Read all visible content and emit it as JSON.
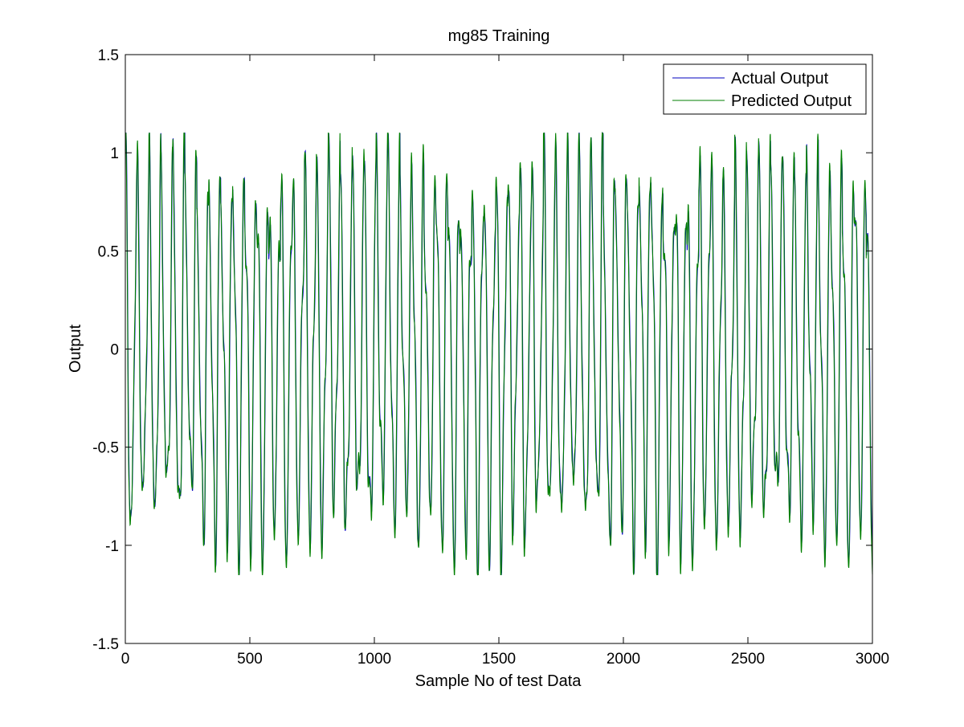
{
  "chart_data": {
    "type": "line",
    "title": "mg85 Training",
    "xlabel": "Sample No of test Data",
    "ylabel": "Output",
    "xlim": [
      0,
      3000
    ],
    "ylim": [
      -1.5,
      1.5
    ],
    "xticks": [
      0,
      500,
      1000,
      1500,
      2000,
      2500,
      3000
    ],
    "yticks": [
      -1.5,
      -1,
      -0.5,
      0,
      0.5,
      1,
      1.5
    ],
    "xtick_labels": [
      "0",
      "500",
      "1000",
      "1500",
      "2000",
      "2500",
      "3000"
    ],
    "ytick_labels": [
      "-1.5",
      "-1",
      "-0.5",
      "0",
      "0.5",
      "1",
      "1.5"
    ],
    "grid": false,
    "legend_position": "top-right",
    "series": [
      {
        "name": "Actual Output",
        "color": "#0000bf"
      },
      {
        "name": "Predicted Output",
        "color": "#007f00"
      }
    ],
    "signal": {
      "n": 3000,
      "x_step": 1,
      "period": 48,
      "peaks_approx": [
        1.05,
        0.88,
        1.0,
        0.9,
        1.08,
        0.98,
        0.85,
        1.02,
        0.9,
        1.05,
        0.95,
        1.0,
        0.88,
        1.06,
        0.92,
        1.03,
        0.97,
        1.09,
        0.9,
        1.0,
        0.95,
        1.07
      ],
      "troughs_approx": [
        -1.12,
        -0.95,
        -1.08,
        -0.92,
        -1.1,
        -0.88,
        -1.05,
        -1.1,
        -0.95,
        -1.08,
        -1.0,
        -1.1,
        -0.93,
        -1.12,
        -0.98,
        -1.05,
        -1.09,
        -0.95,
        -1.1,
        -1.0
      ]
    }
  }
}
